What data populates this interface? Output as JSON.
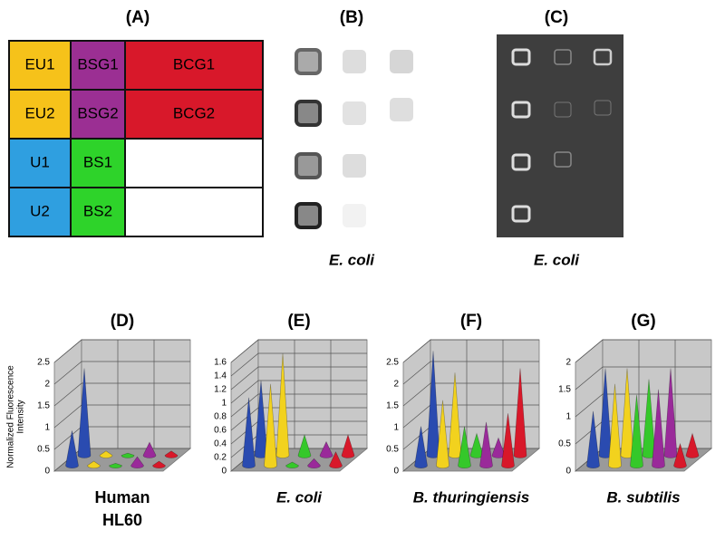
{
  "panels": {
    "a": "(A)",
    "b": "(B)",
    "c": "(C)"
  },
  "grid": {
    "rows": [
      [
        "EU1",
        "BSG1",
        "BCG1"
      ],
      [
        "EU2",
        "BSG2",
        "BCG2"
      ],
      [
        "U1",
        "BS1"
      ],
      [
        "U2",
        "BS2"
      ]
    ]
  },
  "captions": {
    "b": "E. coli",
    "c": "E. coli"
  },
  "chart_data": [
    {
      "type": "cone3d",
      "title": "(D)",
      "ylabel": [
        "Normalized Fluorescence",
        "Intensity"
      ],
      "caption": [
        "Human",
        "HL60"
      ],
      "ylim": [
        0,
        2.5
      ],
      "yticks": [
        0,
        0.5,
        1,
        1.5,
        2,
        2.5
      ],
      "series": [
        {
          "color": "#2a4bb0",
          "values": [
            2.0,
            0.8
          ]
        },
        {
          "color": "#f2d21e",
          "values": [
            0.1,
            0.1
          ]
        },
        {
          "color": "#35c82a",
          "values": [
            0.05,
            0.05
          ]
        },
        {
          "color": "#9a2a9a",
          "values": [
            0.3,
            0.2
          ]
        },
        {
          "color": "#d8182a",
          "values": [
            0.1,
            0.1
          ]
        }
      ]
    },
    {
      "type": "cone3d",
      "title": "(E)",
      "caption": [
        "E. coli"
      ],
      "ylim": [
        0,
        1.6
      ],
      "yticks": [
        0,
        0.2,
        0.4,
        0.6,
        0.8,
        1,
        1.2,
        1.4,
        1.6
      ],
      "series": [
        {
          "color": "#2a4bb0",
          "values": [
            1.1,
            1.0
          ]
        },
        {
          "color": "#f2d21e",
          "values": [
            1.5,
            1.2
          ]
        },
        {
          "color": "#35c82a",
          "values": [
            0.3,
            0.05
          ]
        },
        {
          "color": "#9a2a9a",
          "values": [
            0.2,
            0.1
          ]
        },
        {
          "color": "#d8182a",
          "values": [
            0.3,
            0.2
          ]
        }
      ]
    },
    {
      "type": "cone3d",
      "title": "(F)",
      "caption": [
        "B. thuringiensis"
      ],
      "ylim": [
        0,
        2.5
      ],
      "yticks": [
        0,
        0.5,
        1,
        1.5,
        2,
        2.5
      ],
      "series": [
        {
          "color": "#2a4bb0",
          "values": [
            2.4,
            0.9
          ]
        },
        {
          "color": "#f2d21e",
          "values": [
            1.9,
            1.5
          ]
        },
        {
          "color": "#35c82a",
          "values": [
            0.5,
            0.9
          ]
        },
        {
          "color": "#9a2a9a",
          "values": [
            0.4,
            1.0
          ]
        },
        {
          "color": "#d8182a",
          "values": [
            2.0,
            1.2
          ]
        }
      ]
    },
    {
      "type": "cone3d",
      "title": "(G)",
      "caption": [
        "B. subtilis"
      ],
      "ylim": [
        0,
        2
      ],
      "yticks": [
        0,
        0.5,
        1,
        1.5,
        2
      ],
      "series": [
        {
          "color": "#2a4bb0",
          "values": [
            1.6,
            1.0
          ]
        },
        {
          "color": "#f2d21e",
          "values": [
            1.6,
            1.5
          ]
        },
        {
          "color": "#35c82a",
          "values": [
            1.4,
            1.3
          ]
        },
        {
          "color": "#9a2a9a",
          "values": [
            1.6,
            1.4
          ]
        },
        {
          "color": "#d8182a",
          "values": [
            0.4,
            0.4
          ]
        }
      ]
    }
  ]
}
